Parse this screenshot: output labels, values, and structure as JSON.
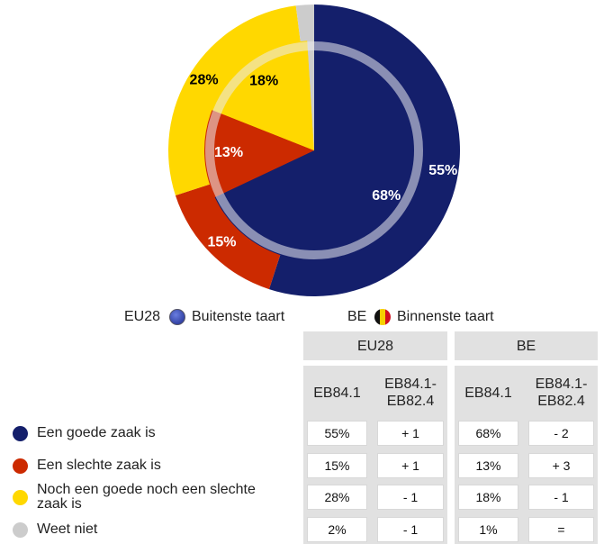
{
  "chart_data": {
    "type": "pie",
    "categories": [
      "Een goede zaak is",
      "Een slechte zaak is",
      "Noch een goede noch een slechte zaak is",
      "Weet niet"
    ],
    "colors": [
      "#141f6b",
      "#cc2a00",
      "#ffd800",
      "#cccccc"
    ],
    "label_colors": [
      "#ffffff",
      "#ffffff",
      "#000000",
      "#000000"
    ],
    "series": [
      {
        "name": "EU28",
        "ring": "Buitenste taart",
        "values": [
          55,
          15,
          28,
          2
        ],
        "value_labels": [
          "55%",
          "15%",
          "28%",
          null
        ]
      },
      {
        "name": "BE",
        "ring": "Binnenste taart",
        "values": [
          68,
          13,
          18,
          1
        ],
        "value_labels": [
          "68%",
          "13%",
          "18%",
          null
        ]
      }
    ]
  },
  "table": {
    "groups": [
      "EU28",
      "BE"
    ],
    "columns": [
      "EB84.1",
      "EB84.1-EB82.4",
      "EB84.1",
      "EB84.1-EB82.4"
    ],
    "rows": [
      [
        "55%",
        "+ 1",
        "68%",
        "- 2"
      ],
      [
        "15%",
        "+ 1",
        "13%",
        "+ 3"
      ],
      [
        "28%",
        "- 1",
        "18%",
        "- 1"
      ],
      [
        "2%",
        "- 1",
        "1%",
        "="
      ]
    ]
  }
}
